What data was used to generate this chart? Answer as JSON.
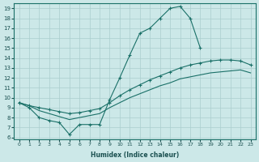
{
  "xlabel": "Humidex (Indice chaleur)",
  "bg_color": "#cce8e8",
  "grid_color": "#aacece",
  "line_color": "#1a7068",
  "xlim": [
    -0.5,
    23.5
  ],
  "ylim": [
    5.8,
    19.5
  ],
  "xticks": [
    0,
    1,
    2,
    3,
    4,
    5,
    6,
    7,
    8,
    9,
    10,
    11,
    12,
    13,
    14,
    15,
    16,
    17,
    18,
    19,
    20,
    21,
    22,
    23
  ],
  "yticks": [
    6,
    7,
    8,
    9,
    10,
    11,
    12,
    13,
    14,
    15,
    16,
    17,
    18,
    19
  ],
  "line_peak_x": [
    0,
    1,
    2,
    3,
    4,
    5,
    6,
    7,
    8,
    9,
    10,
    11,
    12,
    13,
    14,
    15,
    16,
    17,
    18
  ],
  "line_peak_y": [
    9.5,
    9.0,
    8.0,
    7.7,
    7.5,
    6.3,
    7.3,
    7.3,
    7.3,
    9.8,
    12.0,
    14.3,
    16.5,
    17.0,
    18.0,
    19.0,
    19.2,
    18.0,
    15.0
  ],
  "line_upper_x": [
    0,
    1,
    2,
    3,
    4,
    5,
    6,
    7,
    8,
    9,
    10,
    11,
    12,
    13,
    14,
    15,
    16,
    17,
    18,
    19,
    20,
    21,
    22,
    23
  ],
  "line_upper_y": [
    9.5,
    9.2,
    9.0,
    8.8,
    8.6,
    8.4,
    8.5,
    8.7,
    8.9,
    9.5,
    10.2,
    10.8,
    11.3,
    11.8,
    12.2,
    12.6,
    13.0,
    13.3,
    13.5,
    13.7,
    13.8,
    13.8,
    13.7,
    13.3
  ],
  "line_lower_x": [
    0,
    1,
    2,
    3,
    4,
    5,
    6,
    7,
    8,
    9,
    10,
    11,
    12,
    13,
    14,
    15,
    16,
    17,
    18,
    19,
    20,
    21,
    22,
    23
  ],
  "line_lower_y": [
    9.5,
    9.2,
    8.7,
    8.4,
    8.1,
    7.8,
    8.0,
    8.2,
    8.4,
    9.0,
    9.5,
    10.0,
    10.4,
    10.8,
    11.2,
    11.5,
    11.9,
    12.1,
    12.3,
    12.5,
    12.6,
    12.7,
    12.8,
    12.5
  ]
}
